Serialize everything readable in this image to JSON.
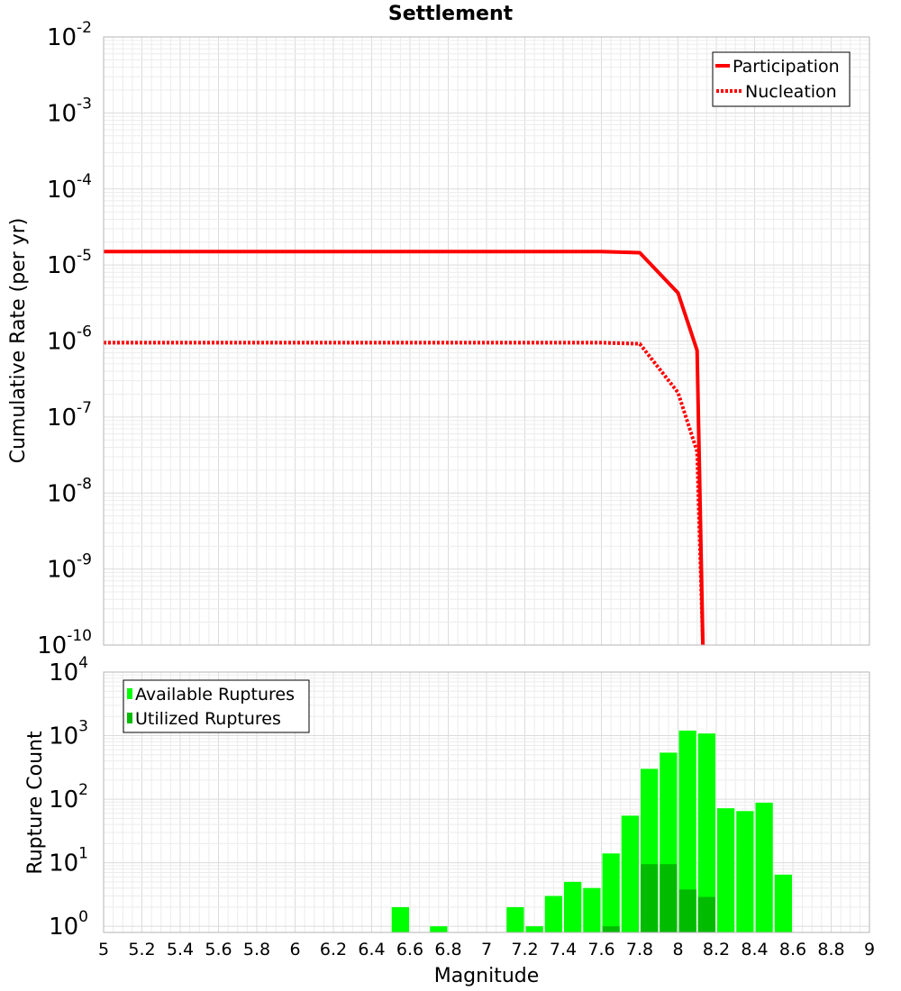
{
  "chart_data": [
    {
      "type": "line",
      "title": "Settlement",
      "xlabel": "",
      "ylabel": "Cumulative Rate (per yr)",
      "yscale": "log",
      "xlim": [
        5,
        9
      ],
      "ylim": [
        1e-10,
        0.01
      ],
      "ytick_bases": [
        "10",
        "10",
        "10",
        "10",
        "10",
        "10",
        "10",
        "10",
        "10"
      ],
      "ytick_exponents": [
        "-10",
        "-9",
        "-8",
        "-7",
        "-6",
        "-5",
        "-4",
        "-3",
        "-2"
      ],
      "legend_position": "top-right",
      "series": [
        {
          "name": "Participation",
          "style": "solid",
          "color": "#ff0000",
          "x": [
            5.0,
            7.6,
            7.8,
            8.0,
            8.1,
            8.13
          ],
          "y": [
            1.5e-05,
            1.5e-05,
            1.45e-05,
            4.3e-06,
            7.5e-07,
            1e-10
          ]
        },
        {
          "name": "Nucleation",
          "style": "dotted",
          "color": "#ff0000",
          "x": [
            5.0,
            7.6,
            7.8,
            8.0,
            8.1,
            8.13
          ],
          "y": [
            9.5e-07,
            9.5e-07,
            9.2e-07,
            2.1e-07,
            3.5e-08,
            1e-10
          ]
        }
      ]
    },
    {
      "type": "bar",
      "title": "",
      "xlabel": "Magnitude",
      "ylabel": "Rupture Count",
      "yscale": "log",
      "xlim": [
        5,
        9
      ],
      "ylim": [
        0.8,
        10000
      ],
      "ytick_bases": [
        "10",
        "10",
        "10",
        "10",
        "10"
      ],
      "ytick_exponents": [
        "0",
        "1",
        "2",
        "3",
        "4"
      ],
      "xticks": [
        "5",
        "5.2",
        "5.4",
        "5.6",
        "5.8",
        "6",
        "6.2",
        "6.4",
        "6.6",
        "6.8",
        "7",
        "7.2",
        "7.4",
        "7.6",
        "7.8",
        "8",
        "8.2",
        "8.4",
        "8.6",
        "8.8",
        "9"
      ],
      "legend_position": "top-left",
      "bin_width": 0.1,
      "series": [
        {
          "name": "Available Ruptures",
          "color": "#00ff00",
          "x": [
            6.55,
            6.75,
            7.15,
            7.25,
            7.35,
            7.45,
            7.55,
            7.65,
            7.75,
            7.85,
            7.95,
            8.05,
            8.15,
            8.25,
            8.35,
            8.45,
            8.55
          ],
          "y": [
            2,
            1,
            2,
            1,
            3,
            5,
            4,
            14,
            55,
            300,
            540,
            1200,
            1080,
            72,
            65,
            88,
            6.5
          ]
        },
        {
          "name": "Utilized Ruptures",
          "color": "#00bb00",
          "x": [
            7.65,
            7.85,
            7.95,
            8.05,
            8.15
          ],
          "y": [
            1,
            9.5,
            9.5,
            3.8,
            2.9
          ]
        }
      ]
    }
  ]
}
